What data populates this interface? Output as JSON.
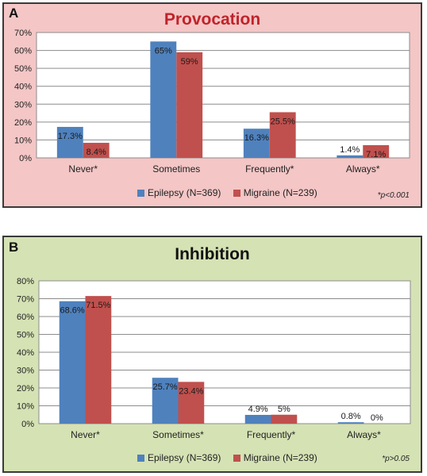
{
  "colors": {
    "epilepsy": "#4f81bd",
    "migraine": "#c0504d"
  },
  "chart_data": [
    {
      "type": "bar",
      "panel_label": "A",
      "title": "Provocation",
      "categories": [
        "Never*",
        "Sometimes",
        "Frequently*",
        "Always*"
      ],
      "series": [
        {
          "name": "Epilepsy (N=369)",
          "values": [
            17.3,
            65,
            16.3,
            1.4
          ],
          "labels": [
            "17.3%",
            "65%",
            "16.3%",
            "1.4%"
          ]
        },
        {
          "name": "Migraine (N=239)",
          "values": [
            8.4,
            59,
            25.5,
            7.1
          ],
          "labels": [
            "8.4%",
            "59%",
            "25.5%",
            "7.1%"
          ]
        }
      ],
      "ylim": [
        0,
        70
      ],
      "yticks": [
        "0%",
        "10%",
        "20%",
        "30%",
        "40%",
        "50%",
        "60%",
        "70%"
      ],
      "grid": true,
      "legend": "bottom",
      "note": "*p<0.001"
    },
    {
      "type": "bar",
      "panel_label": "B",
      "title": "Inhibition",
      "categories": [
        "Never*",
        "Sometimes*",
        "Frequently*",
        "Always*"
      ],
      "series": [
        {
          "name": "Epilepsy (N=369)",
          "values": [
            68.6,
            25.7,
            4.9,
            0.8
          ],
          "labels": [
            "68.6%",
            "25.7%",
            "4.9%",
            "0.8%"
          ]
        },
        {
          "name": "Migraine (N=239)",
          "values": [
            71.5,
            23.4,
            5,
            0
          ],
          "labels": [
            "71.5%",
            "23.4%",
            "5%",
            "0%"
          ]
        }
      ],
      "ylim": [
        0,
        80
      ],
      "yticks": [
        "0%",
        "10%",
        "20%",
        "30%",
        "40%",
        "50%",
        "60%",
        "70%",
        "80%"
      ],
      "grid": true,
      "legend": "bottom",
      "note": "*p>0.05"
    }
  ]
}
